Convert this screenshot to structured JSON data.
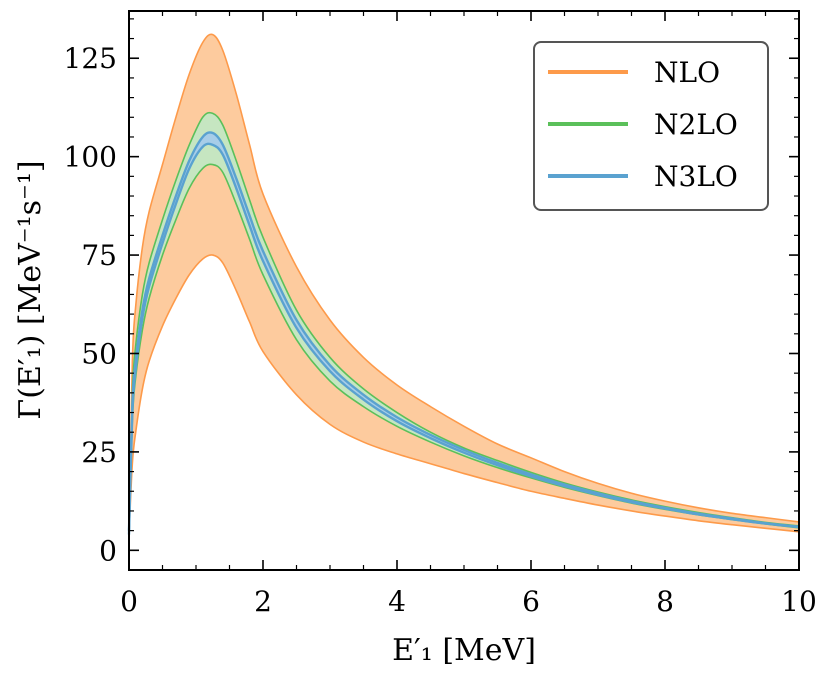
{
  "chart_data": {
    "type": "area",
    "title": "",
    "xlabel": "E′₁ [MeV]",
    "ylabel": "Γ(E′₁) [MeV⁻¹s⁻¹]",
    "xlim": [
      0,
      10
    ],
    "ylim": [
      -5,
      137
    ],
    "xticks": [
      0,
      2,
      4,
      6,
      8,
      10
    ],
    "yticks": [
      0,
      25,
      50,
      75,
      100,
      125
    ],
    "xtick_labels": [
      "0",
      "2",
      "4",
      "6",
      "8",
      "10"
    ],
    "ytick_labels": [
      "0",
      "25",
      "50",
      "75",
      "100",
      "125"
    ],
    "grid": false,
    "legend_position": "top-right",
    "x": [
      0,
      0.05,
      0.1,
      0.2,
      0.3,
      0.5,
      0.7,
      0.9,
      1.1,
      1.25,
      1.4,
      1.6,
      1.8,
      2.0,
      2.5,
      3.0,
      3.5,
      4.0,
      4.5,
      5.0,
      5.5,
      6.0,
      6.5,
      7.0,
      7.5,
      8.0,
      8.5,
      9.0,
      9.5,
      10.0
    ],
    "series": [
      {
        "name": "NLO",
        "color": "#fd9a4a",
        "band_color": "#fdcb9e",
        "upper": [
          5,
          48,
          62,
          77,
          86,
          98,
          110,
          121,
          129,
          131,
          127,
          116,
          103,
          90.5,
          72,
          58.5,
          49,
          42,
          36.5,
          31.5,
          27,
          23.5,
          20,
          17,
          14.5,
          12.5,
          10.8,
          9.4,
          8.3,
          7.2
        ],
        "lower": [
          4,
          22,
          30,
          41,
          48,
          57,
          64,
          70,
          74,
          75,
          73,
          66,
          58,
          50.5,
          39.5,
          32,
          27.5,
          24.5,
          22,
          19.5,
          17.2,
          15,
          13.2,
          11.5,
          10,
          8.7,
          7.5,
          6.5,
          5.6,
          4.7
        ]
      },
      {
        "name": "N2LO",
        "color": "#5bc05a",
        "band_color": "#c6e6c1",
        "upper": [
          5,
          40,
          52,
          65,
          73,
          84,
          94,
          103,
          110,
          111,
          108,
          99,
          89,
          79.5,
          61,
          49,
          41,
          35,
          30,
          26,
          22.8,
          19.8,
          17.1,
          14.8,
          12.8,
          11.1,
          9.6,
          8.3,
          7.1,
          6.2
        ],
        "lower": [
          4,
          33,
          44,
          56,
          64,
          75,
          84,
          92,
          97,
          98,
          96,
          88,
          79,
          70,
          53.5,
          43,
          36.5,
          31.5,
          27.5,
          24,
          21,
          18.4,
          16,
          13.9,
          12,
          10.4,
          9,
          7.8,
          6.7,
          5.7
        ]
      },
      {
        "name": "N3LO",
        "color": "#5aa2d0",
        "band_color": "#a7cde8",
        "upper": [
          5,
          37,
          48,
          61,
          69,
          80,
          90,
          99,
          105,
          106,
          103,
          94.5,
          85,
          76,
          58.5,
          47,
          39.5,
          33.8,
          29.3,
          25.5,
          22.2,
          19.3,
          16.7,
          14.5,
          12.5,
          10.8,
          9.3,
          8.1,
          6.9,
          6
        ],
        "lower": [
          4,
          35,
          46,
          59,
          67,
          78,
          88,
          97,
          102.5,
          103,
          100.5,
          92,
          82.5,
          73.5,
          56.5,
          45.5,
          38.3,
          32.8,
          28.5,
          24.8,
          21.6,
          18.8,
          16.3,
          14.1,
          12.2,
          10.6,
          9.1,
          7.9,
          6.8,
          5.9
        ]
      }
    ]
  }
}
